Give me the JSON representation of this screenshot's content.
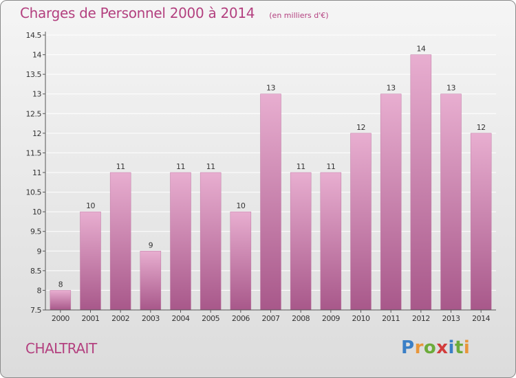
{
  "title": "Charges de Personnel 2000 à 2014",
  "subtitle": "(en milliers d'€)",
  "commune": "CHALTRAIT",
  "logo": {
    "letters": [
      "P",
      "r",
      "o",
      "x",
      "i",
      "t",
      "i"
    ],
    "colors": [
      "#3a7fc6",
      "#e8963a",
      "#6cab3a",
      "#d23c3c",
      "#3a7fc6",
      "#6cab3a",
      "#e8963a"
    ]
  },
  "colors": {
    "bar_top": "#e8aed0",
    "bar_bottom": "#a8588a",
    "title": "#b3407f"
  },
  "chart_data": {
    "type": "bar",
    "categories": [
      "2000",
      "2001",
      "2002",
      "2003",
      "2004",
      "2005",
      "2006",
      "2007",
      "2008",
      "2009",
      "2010",
      "2011",
      "2012",
      "2013",
      "2014"
    ],
    "values": [
      8,
      10,
      11,
      9,
      11,
      11,
      10,
      13,
      11,
      11,
      12,
      13,
      14,
      13,
      12
    ],
    "labels": [
      "8",
      "10",
      "11",
      "9",
      "11",
      "11",
      "10",
      "13",
      "11",
      "11",
      "12",
      "13",
      "14",
      "13",
      "12"
    ],
    "yticks": [
      7.5,
      8,
      8.5,
      9,
      9.5,
      10,
      10.5,
      11,
      11.5,
      12,
      12.5,
      13,
      13.5,
      14,
      14.5
    ],
    "ytick_labels": [
      "7.5",
      "8",
      "8.5",
      "9",
      "9.5",
      "10",
      "10.5",
      "11",
      "11.5",
      "12",
      "12.5",
      "13",
      "13.5",
      "14",
      "14.5"
    ],
    "ylim": [
      7.5,
      14.5
    ],
    "grid": true
  }
}
